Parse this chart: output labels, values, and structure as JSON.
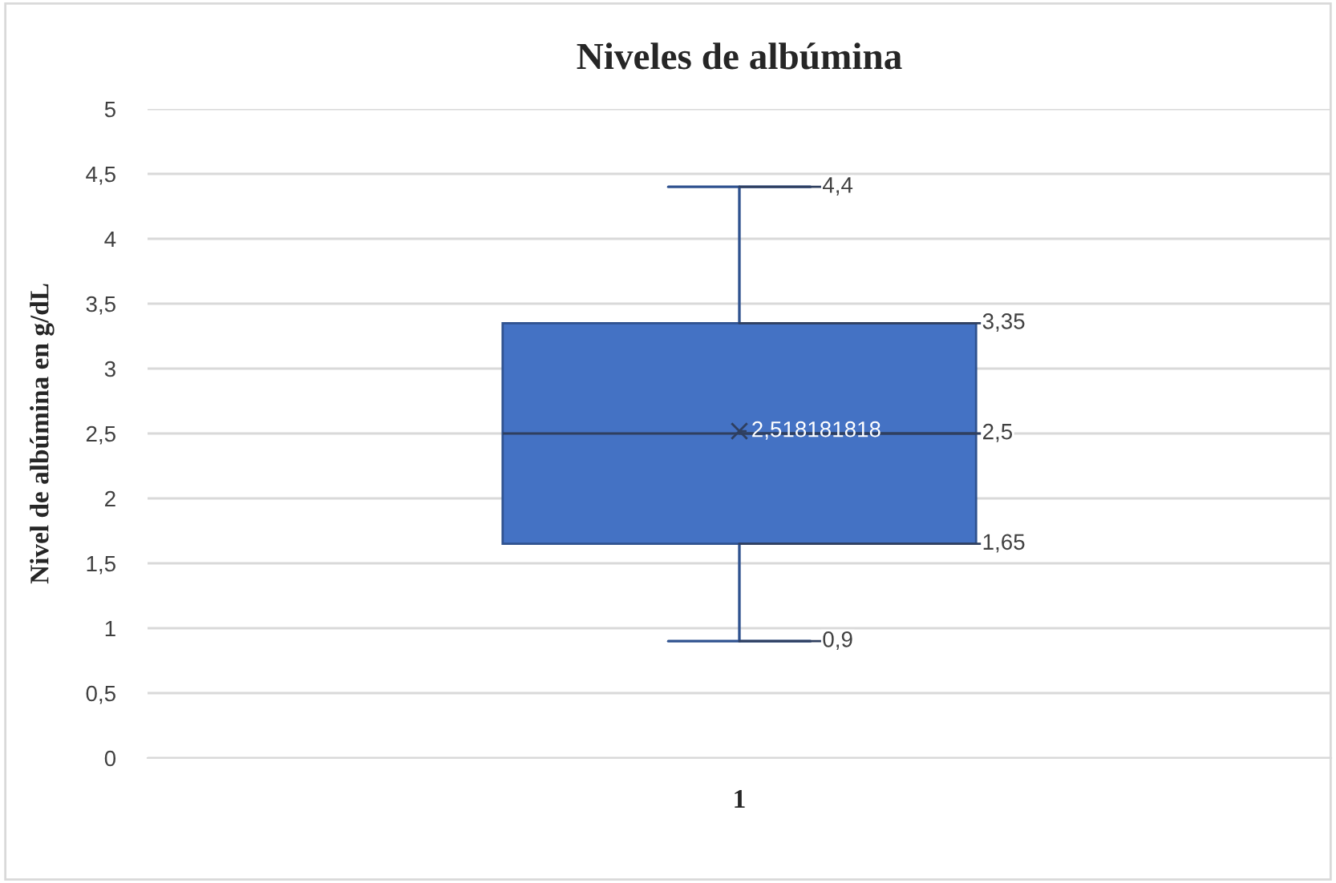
{
  "chart_data": {
    "type": "box",
    "title": "Niveles de albúmina",
    "ylabel": "Nivel de albúmina en g/dL",
    "categories": [
      "1"
    ],
    "boxes": [
      {
        "low": 0.9,
        "q1": 1.65,
        "median": 2.5,
        "q3": 3.35,
        "high": 4.4,
        "mean": 2.518181818
      }
    ],
    "annotations": [
      {
        "text": "0,9",
        "x": "1",
        "y": 0.9
      },
      {
        "text": "1,65",
        "x": "1",
        "y": 1.65
      },
      {
        "text": "2,5",
        "x": "1",
        "y": 2.5
      },
      {
        "text": "3,35",
        "x": "1",
        "y": 3.35
      },
      {
        "text": "4,4",
        "x": "1",
        "y": 4.4
      },
      {
        "text": "2,518181818",
        "x": "1",
        "y": 2.518181818
      }
    ],
    "color": "#4472c4",
    "ylim": [
      0,
      5
    ],
    "yticks": [
      0,
      {
        "value": 0.5,
        "label": "0,5"
      },
      1,
      {
        "value": 1.5,
        "label": "1,5"
      },
      2,
      {
        "value": 2.5,
        "label": "2,5"
      },
      3,
      {
        "value": 3.5,
        "label": "3,5"
      },
      4,
      {
        "value": 4.5,
        "label": "4,5"
      },
      5
    ],
    "grid": "y"
  }
}
